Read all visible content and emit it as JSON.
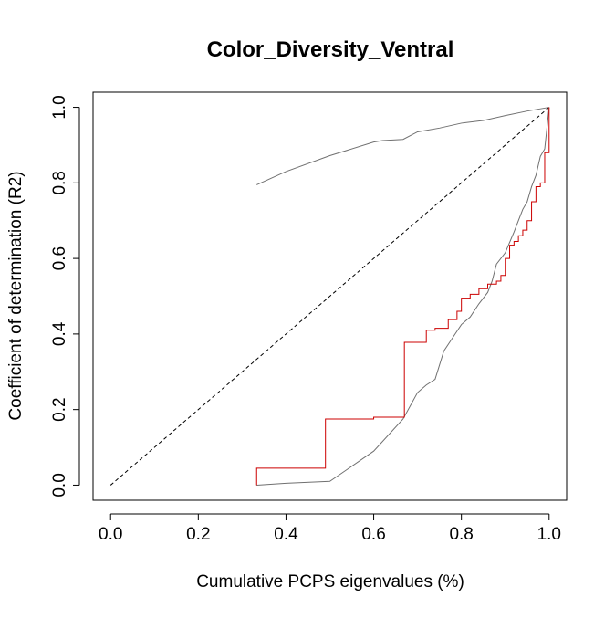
{
  "chart_data": {
    "type": "line",
    "title": "Color_Diversity_Ventral",
    "xlabel": "Cumulative PCPS eigenvalues (%)",
    "ylabel": "Coefficient of determination (R2)",
    "xlim": [
      -0.04,
      1.04
    ],
    "ylim": [
      -0.04,
      1.04
    ],
    "xticks": [
      "0.0",
      "0.2",
      "0.4",
      "0.6",
      "0.8",
      "1.0"
    ],
    "yticks": [
      "0.0",
      "0.2",
      "0.4",
      "0.6",
      "0.8",
      "1.0"
    ],
    "grid": false,
    "legend": "none",
    "series": [
      {
        "color": "#000000",
        "style": "dashed",
        "x": [
          0,
          1
        ],
        "y": [
          0,
          1
        ]
      },
      {
        "color": "#707070",
        "style": "solid",
        "x": [
          0.333,
          0.4,
          0.5,
          0.6,
          0.62,
          0.667,
          0.7,
          0.75,
          0.8,
          0.85,
          0.9,
          0.95,
          1.0
        ],
        "y": [
          0.795,
          0.83,
          0.872,
          0.908,
          0.912,
          0.915,
          0.935,
          0.945,
          0.958,
          0.965,
          0.978,
          0.99,
          1.0
        ]
      },
      {
        "color": "#707070",
        "style": "solid",
        "x": [
          0.333,
          0.4,
          0.5,
          0.6,
          0.667,
          0.7,
          0.72,
          0.74,
          0.76,
          0.78,
          0.8,
          0.82,
          0.84,
          0.86,
          0.87,
          0.88,
          0.9,
          0.92,
          0.93,
          0.94,
          0.95,
          0.96,
          0.97,
          0.98,
          0.99,
          1.0
        ],
        "y": [
          0.0,
          0.005,
          0.01,
          0.09,
          0.175,
          0.245,
          0.265,
          0.28,
          0.355,
          0.39,
          0.425,
          0.445,
          0.48,
          0.51,
          0.54,
          0.585,
          0.615,
          0.67,
          0.7,
          0.73,
          0.75,
          0.79,
          0.82,
          0.87,
          0.89,
          1.0
        ]
      },
      {
        "color": "#cc0000",
        "style": "step",
        "x": [
          0.333,
          0.333,
          0.49,
          0.49,
          0.6,
          0.6,
          0.67,
          0.67,
          0.72,
          0.72,
          0.74,
          0.74,
          0.77,
          0.77,
          0.79,
          0.79,
          0.8,
          0.8,
          0.82,
          0.82,
          0.84,
          0.84,
          0.86,
          0.86,
          0.88,
          0.88,
          0.89,
          0.89,
          0.9,
          0.9,
          0.91,
          0.91,
          0.92,
          0.92,
          0.93,
          0.93,
          0.94,
          0.94,
          0.95,
          0.95,
          0.96,
          0.96,
          0.97,
          0.97,
          0.98,
          0.98,
          0.99,
          0.99,
          1.0,
          1.0
        ],
        "y": [
          0.0,
          0.045,
          0.045,
          0.175,
          0.175,
          0.18,
          0.18,
          0.378,
          0.378,
          0.41,
          0.41,
          0.415,
          0.415,
          0.438,
          0.438,
          0.46,
          0.46,
          0.495,
          0.495,
          0.505,
          0.505,
          0.52,
          0.52,
          0.532,
          0.532,
          0.54,
          0.54,
          0.555,
          0.555,
          0.6,
          0.6,
          0.635,
          0.635,
          0.645,
          0.645,
          0.66,
          0.66,
          0.675,
          0.675,
          0.7,
          0.7,
          0.75,
          0.75,
          0.79,
          0.79,
          0.8,
          0.8,
          0.88,
          0.88,
          1.0
        ]
      }
    ]
  }
}
